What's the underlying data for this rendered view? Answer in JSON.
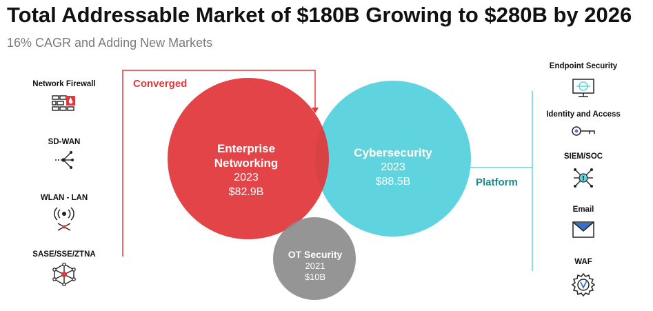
{
  "header": {
    "title": "Total Addressable Market of $180B Growing to $280B by 2026",
    "subtitle": "16% CAGR and Adding New Markets"
  },
  "left_items": [
    {
      "label": "Network Firewall",
      "icon": "firewall-icon"
    },
    {
      "label": "SD-WAN",
      "icon": "sdwan-icon"
    },
    {
      "label": "WLAN - LAN",
      "icon": "wireless-icon"
    },
    {
      "label": "SASE/SSE/ZTNA",
      "icon": "network-hub-icon"
    }
  ],
  "right_items": [
    {
      "label": "Endpoint Security",
      "icon": "endpoint-monitor-icon"
    },
    {
      "label": "Identity and Access",
      "icon": "key-icon"
    },
    {
      "label": "SIEM/SOC",
      "icon": "siem-icon"
    },
    {
      "label": "Email",
      "icon": "email-icon"
    },
    {
      "label": "WAF",
      "icon": "waf-gear-icon"
    }
  ],
  "annotations": {
    "converged": "Converged",
    "platform": "Platform"
  },
  "markets": {
    "enterprise": {
      "name_line1": "Enterprise",
      "name_line2": "Networking",
      "year": "2023",
      "value": "$82.9B"
    },
    "cyber": {
      "name": "Cybersecurity",
      "year": "2023",
      "value": "$88.5B"
    },
    "ot": {
      "name": "OT Security",
      "year": "2021",
      "value": "$10B"
    }
  },
  "colors": {
    "red": "#e0383b",
    "teal": "#5fd4de",
    "gray": "#8a8a8a",
    "platform_text": "#1b8a8f",
    "icon_dark": "#222222"
  }
}
